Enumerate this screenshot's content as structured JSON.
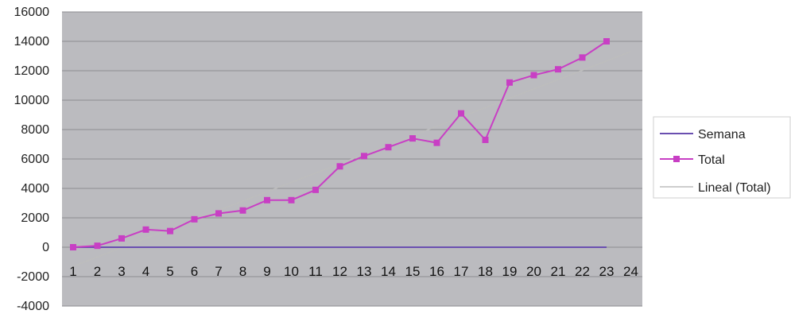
{
  "chart_data": {
    "type": "line",
    "title": "",
    "xlabel": "",
    "ylabel": "",
    "x": [
      1,
      2,
      3,
      4,
      5,
      6,
      7,
      8,
      9,
      10,
      11,
      12,
      13,
      14,
      15,
      16,
      17,
      18,
      19,
      20,
      21,
      22,
      23,
      24
    ],
    "xlim": [
      1,
      24
    ],
    "ylim": [
      -4000,
      16000
    ],
    "yticks": [
      -4000,
      -2000,
      0,
      2000,
      4000,
      6000,
      8000,
      10000,
      12000,
      14000,
      16000
    ],
    "grid": true,
    "legend_position": "right",
    "series": [
      {
        "name": "Semana",
        "color": "#6a4fb0",
        "marker": "none",
        "x": [
          1,
          2,
          3,
          4,
          5,
          6,
          7,
          8,
          9,
          10,
          11,
          12,
          13,
          14,
          15,
          16,
          17,
          18,
          19,
          20,
          21,
          22,
          23
        ],
        "values": [
          0,
          0,
          0,
          0,
          0,
          0,
          0,
          0,
          0,
          0,
          0,
          0,
          0,
          0,
          0,
          0,
          0,
          0,
          0,
          0,
          0,
          0,
          0
        ]
      },
      {
        "name": "Total",
        "color": "#c83fc4",
        "marker": "square",
        "x": [
          1,
          2,
          3,
          4,
          5,
          6,
          7,
          8,
          9,
          10,
          11,
          12,
          13,
          14,
          15,
          16,
          17,
          18,
          19,
          20,
          21,
          22,
          23
        ],
        "values": [
          0,
          100,
          600,
          1200,
          1100,
          1900,
          2300,
          2500,
          3200,
          3200,
          3900,
          5500,
          6200,
          6800,
          7400,
          7100,
          9100,
          7300,
          11200,
          11700,
          12100,
          12900,
          14000
        ]
      },
      {
        "name": "Lineal (Total)",
        "color": "#bdbdbd",
        "marker": "none",
        "x": [
          1,
          24
        ],
        "values": [
          -1300,
          13300
        ]
      }
    ]
  }
}
